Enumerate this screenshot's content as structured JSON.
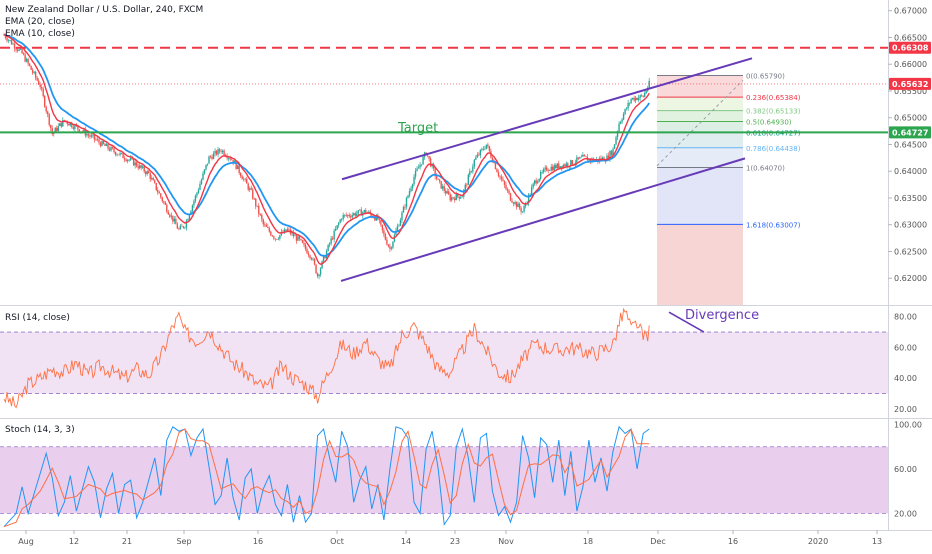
{
  "chart_data": {
    "type": "line",
    "instrument": {
      "title": "New Zealand Dollar / U.S. Dollar, 240, FXCM",
      "ema20_label": "EMA (20, close)",
      "ema10_label": "EMA (10, close)"
    },
    "x_ticks": [
      "Aug",
      "12",
      "21",
      "Sep",
      "16",
      "Oct",
      "14",
      "23",
      "Nov",
      "18",
      "Dec",
      "16",
      "2020",
      "13"
    ],
    "price_axis": {
      "ylim": [
        0.615,
        0.672
      ],
      "ticks": [
        "0.67000",
        "0.66500",
        "0.66000",
        "0.65500",
        "0.65000",
        "0.64500",
        "0.64000",
        "0.63500",
        "0.63000",
        "0.62500",
        "0.62000"
      ],
      "tick_values": [
        0.67,
        0.665,
        0.66,
        0.655,
        0.65,
        0.645,
        0.64,
        0.635,
        0.63,
        0.625,
        0.62
      ]
    },
    "price_labels": [
      {
        "text": "0.66308",
        "value": 0.66308,
        "color": "#f23645"
      },
      {
        "text": "0.65632",
        "value": 0.65632,
        "color": "#f23645"
      },
      {
        "text": "0.64727",
        "value": 0.64727,
        "color": "#2da44e"
      }
    ],
    "resistance_level": 0.66308,
    "target_level": 0.64727,
    "target_label": "Target",
    "close_series": [
      {
        "t": 0,
        "v": 0.6655
      },
      {
        "t": 3,
        "v": 0.662
      },
      {
        "t": 6,
        "v": 0.656
      },
      {
        "t": 8,
        "v": 0.647
      },
      {
        "t": 10,
        "v": 0.6495
      },
      {
        "t": 13,
        "v": 0.6475
      },
      {
        "t": 17,
        "v": 0.6445
      },
      {
        "t": 21,
        "v": 0.642
      },
      {
        "t": 24,
        "v": 0.6395
      },
      {
        "t": 27,
        "v": 0.633
      },
      {
        "t": 29,
        "v": 0.629
      },
      {
        "t": 30,
        "v": 0.63
      },
      {
        "t": 32,
        "v": 0.636
      },
      {
        "t": 34,
        "v": 0.6425
      },
      {
        "t": 36,
        "v": 0.644
      },
      {
        "t": 38,
        "v": 0.642
      },
      {
        "t": 41,
        "v": 0.636
      },
      {
        "t": 43,
        "v": 0.63
      },
      {
        "t": 45,
        "v": 0.6275
      },
      {
        "t": 47,
        "v": 0.629
      },
      {
        "t": 49,
        "v": 0.627
      },
      {
        "t": 51,
        "v": 0.624
      },
      {
        "t": 52,
        "v": 0.6205
      },
      {
        "t": 54,
        "v": 0.6265
      },
      {
        "t": 56,
        "v": 0.6315
      },
      {
        "t": 58,
        "v": 0.632
      },
      {
        "t": 60,
        "v": 0.6325
      },
      {
        "t": 62,
        "v": 0.631
      },
      {
        "t": 63,
        "v": 0.628
      },
      {
        "t": 64,
        "v": 0.6255
      },
      {
        "t": 66,
        "v": 0.632
      },
      {
        "t": 68,
        "v": 0.639
      },
      {
        "t": 70,
        "v": 0.6435
      },
      {
        "t": 72,
        "v": 0.638
      },
      {
        "t": 74,
        "v": 0.635
      },
      {
        "t": 76,
        "v": 0.6355
      },
      {
        "t": 78,
        "v": 0.642
      },
      {
        "t": 80,
        "v": 0.645
      },
      {
        "t": 82,
        "v": 0.6395
      },
      {
        "t": 84,
        "v": 0.635
      },
      {
        "t": 86,
        "v": 0.6325
      },
      {
        "t": 88,
        "v": 0.638
      },
      {
        "t": 90,
        "v": 0.6405
      },
      {
        "t": 92,
        "v": 0.641
      },
      {
        "t": 94,
        "v": 0.6415
      },
      {
        "t": 96,
        "v": 0.6425
      },
      {
        "t": 98,
        "v": 0.642
      },
      {
        "t": 100,
        "v": 0.6425
      },
      {
        "t": 101,
        "v": 0.644
      },
      {
        "t": 102,
        "v": 0.649
      },
      {
        "t": 104,
        "v": 0.6535
      },
      {
        "t": 106,
        "v": 0.654
      },
      {
        "t": 107,
        "v": 0.6563
      }
    ],
    "rsi": {
      "label": "RSI (14, close)",
      "ylim": [
        14,
        87
      ],
      "ticks": [
        "80.00",
        "60.00",
        "40.00",
        "20.00"
      ],
      "tick_values": [
        80,
        60,
        40,
        20
      ],
      "band": [
        30,
        70
      ],
      "series": [
        {
          "t": 0,
          "v": 28
        },
        {
          "t": 2,
          "v": 22
        },
        {
          "t": 4,
          "v": 36
        },
        {
          "t": 6,
          "v": 40
        },
        {
          "t": 8,
          "v": 46
        },
        {
          "t": 10,
          "v": 44
        },
        {
          "t": 12,
          "v": 50
        },
        {
          "t": 14,
          "v": 42
        },
        {
          "t": 16,
          "v": 48
        },
        {
          "t": 18,
          "v": 44
        },
        {
          "t": 20,
          "v": 40
        },
        {
          "t": 22,
          "v": 46
        },
        {
          "t": 24,
          "v": 42
        },
        {
          "t": 26,
          "v": 54
        },
        {
          "t": 28,
          "v": 74
        },
        {
          "t": 29,
          "v": 80
        },
        {
          "t": 30,
          "v": 70
        },
        {
          "t": 32,
          "v": 64
        },
        {
          "t": 34,
          "v": 72
        },
        {
          "t": 36,
          "v": 60
        },
        {
          "t": 38,
          "v": 50
        },
        {
          "t": 40,
          "v": 44
        },
        {
          "t": 42,
          "v": 36
        },
        {
          "t": 44,
          "v": 34
        },
        {
          "t": 46,
          "v": 48
        },
        {
          "t": 48,
          "v": 40
        },
        {
          "t": 50,
          "v": 36
        },
        {
          "t": 52,
          "v": 28
        },
        {
          "t": 54,
          "v": 46
        },
        {
          "t": 56,
          "v": 62
        },
        {
          "t": 58,
          "v": 56
        },
        {
          "t": 60,
          "v": 64
        },
        {
          "t": 62,
          "v": 52
        },
        {
          "t": 64,
          "v": 46
        },
        {
          "t": 66,
          "v": 68
        },
        {
          "t": 68,
          "v": 74
        },
        {
          "t": 70,
          "v": 62
        },
        {
          "t": 72,
          "v": 46
        },
        {
          "t": 74,
          "v": 44
        },
        {
          "t": 76,
          "v": 58
        },
        {
          "t": 78,
          "v": 72
        },
        {
          "t": 80,
          "v": 58
        },
        {
          "t": 82,
          "v": 44
        },
        {
          "t": 84,
          "v": 40
        },
        {
          "t": 86,
          "v": 52
        },
        {
          "t": 88,
          "v": 62
        },
        {
          "t": 90,
          "v": 60
        },
        {
          "t": 92,
          "v": 58
        },
        {
          "t": 94,
          "v": 60
        },
        {
          "t": 96,
          "v": 58
        },
        {
          "t": 98,
          "v": 56
        },
        {
          "t": 100,
          "v": 60
        },
        {
          "t": 101,
          "v": 62
        },
        {
          "t": 102,
          "v": 76
        },
        {
          "t": 103,
          "v": 84
        },
        {
          "t": 104,
          "v": 72
        },
        {
          "t": 105,
          "v": 76
        },
        {
          "t": 106,
          "v": 66
        },
        {
          "t": 107,
          "v": 70
        }
      ],
      "divergence_label": "Divergence"
    },
    "stoch": {
      "label": "Stoch (14, 3, 3)",
      "ylim": [
        5,
        105
      ],
      "ticks": [
        "100.00",
        "60.00",
        "20.00"
      ],
      "tick_values": [
        100,
        60,
        20
      ],
      "band": [
        20,
        80
      ],
      "k_series": [
        {
          "t": 0,
          "v": 8
        },
        {
          "t": 2,
          "v": 20
        },
        {
          "t": 3,
          "v": 44
        },
        {
          "t": 4,
          "v": 20
        },
        {
          "t": 6,
          "v": 56
        },
        {
          "t": 7,
          "v": 74
        },
        {
          "t": 8,
          "v": 52
        },
        {
          "t": 9,
          "v": 18
        },
        {
          "t": 10,
          "v": 30
        },
        {
          "t": 11,
          "v": 54
        },
        {
          "t": 12,
          "v": 22
        },
        {
          "t": 14,
          "v": 62
        },
        {
          "t": 15,
          "v": 48
        },
        {
          "t": 16,
          "v": 16
        },
        {
          "t": 17,
          "v": 42
        },
        {
          "t": 18,
          "v": 56
        },
        {
          "t": 19,
          "v": 20
        },
        {
          "t": 20,
          "v": 46
        },
        {
          "t": 21,
          "v": 50
        },
        {
          "t": 22,
          "v": 16
        },
        {
          "t": 23,
          "v": 30
        },
        {
          "t": 25,
          "v": 70
        },
        {
          "t": 26,
          "v": 36
        },
        {
          "t": 27,
          "v": 86
        },
        {
          "t": 28,
          "v": 98
        },
        {
          "t": 29,
          "v": 94
        },
        {
          "t": 30,
          "v": 96
        },
        {
          "t": 31,
          "v": 72
        },
        {
          "t": 32,
          "v": 88
        },
        {
          "t": 33,
          "v": 96
        },
        {
          "t": 34,
          "v": 62
        },
        {
          "t": 35,
          "v": 28
        },
        {
          "t": 36,
          "v": 36
        },
        {
          "t": 37,
          "v": 70
        },
        {
          "t": 38,
          "v": 34
        },
        {
          "t": 39,
          "v": 14
        },
        {
          "t": 40,
          "v": 52
        },
        {
          "t": 41,
          "v": 60
        },
        {
          "t": 42,
          "v": 20
        },
        {
          "t": 43,
          "v": 42
        },
        {
          "t": 44,
          "v": 54
        },
        {
          "t": 45,
          "v": 28
        },
        {
          "t": 46,
          "v": 18
        },
        {
          "t": 47,
          "v": 46
        },
        {
          "t": 48,
          "v": 12
        },
        {
          "t": 49,
          "v": 36
        },
        {
          "t": 50,
          "v": 12
        },
        {
          "t": 51,
          "v": 20
        },
        {
          "t": 52,
          "v": 90
        },
        {
          "t": 53,
          "v": 96
        },
        {
          "t": 54,
          "v": 70
        },
        {
          "t": 55,
          "v": 48
        },
        {
          "t": 56,
          "v": 94
        },
        {
          "t": 57,
          "v": 80
        },
        {
          "t": 58,
          "v": 30
        },
        {
          "t": 59,
          "v": 50
        },
        {
          "t": 60,
          "v": 62
        },
        {
          "t": 61,
          "v": 24
        },
        {
          "t": 62,
          "v": 46
        },
        {
          "t": 63,
          "v": 14
        },
        {
          "t": 64,
          "v": 60
        },
        {
          "t": 65,
          "v": 98
        },
        {
          "t": 66,
          "v": 96
        },
        {
          "t": 67,
          "v": 88
        },
        {
          "t": 68,
          "v": 30
        },
        {
          "t": 69,
          "v": 20
        },
        {
          "t": 70,
          "v": 78
        },
        {
          "t": 71,
          "v": 94
        },
        {
          "t": 72,
          "v": 60
        },
        {
          "t": 73,
          "v": 10
        },
        {
          "t": 74,
          "v": 18
        },
        {
          "t": 75,
          "v": 80
        },
        {
          "t": 76,
          "v": 96
        },
        {
          "t": 77,
          "v": 70
        },
        {
          "t": 78,
          "v": 30
        },
        {
          "t": 79,
          "v": 88
        },
        {
          "t": 80,
          "v": 92
        },
        {
          "t": 81,
          "v": 40
        },
        {
          "t": 82,
          "v": 18
        },
        {
          "t": 83,
          "v": 26
        },
        {
          "t": 84,
          "v": 12
        },
        {
          "t": 85,
          "v": 30
        },
        {
          "t": 86,
          "v": 90
        },
        {
          "t": 87,
          "v": 70
        },
        {
          "t": 88,
          "v": 34
        },
        {
          "t": 89,
          "v": 88
        },
        {
          "t": 90,
          "v": 82
        },
        {
          "t": 91,
          "v": 48
        },
        {
          "t": 92,
          "v": 86
        },
        {
          "t": 93,
          "v": 36
        },
        {
          "t": 94,
          "v": 76
        },
        {
          "t": 95,
          "v": 22
        },
        {
          "t": 96,
          "v": 44
        },
        {
          "t": 97,
          "v": 86
        },
        {
          "t": 98,
          "v": 48
        },
        {
          "t": 99,
          "v": 70
        },
        {
          "t": 100,
          "v": 40
        },
        {
          "t": 101,
          "v": 76
        },
        {
          "t": 102,
          "v": 98
        },
        {
          "t": 103,
          "v": 92
        },
        {
          "t": 104,
          "v": 96
        },
        {
          "t": 105,
          "v": 60
        },
        {
          "t": 106,
          "v": 92
        },
        {
          "t": 107,
          "v": 96
        }
      ]
    },
    "fibonacci": {
      "levels": [
        {
          "label": "0(0.65790)",
          "value": 0.6579,
          "color": "#787b86"
        },
        {
          "label": "0.236(0.65384)",
          "value": 0.65384,
          "color": "#f23645"
        },
        {
          "label": "0.382(0.65133)",
          "value": 0.65133,
          "color": "#81c784"
        },
        {
          "label": "0.5(0.64930)",
          "value": 0.6493,
          "color": "#4caf50"
        },
        {
          "label": "0.618(0.64727)",
          "value": 0.64727,
          "color": "#089981"
        },
        {
          "label": "0.786(0.64438)",
          "value": 0.64438,
          "color": "#64b5f6"
        },
        {
          "label": "1(0.64070)",
          "value": 0.6407,
          "color": "#787b86"
        },
        {
          "label": "1.618(0.63007)",
          "value": 0.63007,
          "color": "#2962ff"
        }
      ]
    },
    "colors": {
      "ema20": "#2196f3",
      "ema10": "#f23645",
      "channel": "#673ab7",
      "rsi_line": "#ff7043",
      "stoch_k": "#2196f3",
      "stoch_d": "#ff7043"
    }
  }
}
